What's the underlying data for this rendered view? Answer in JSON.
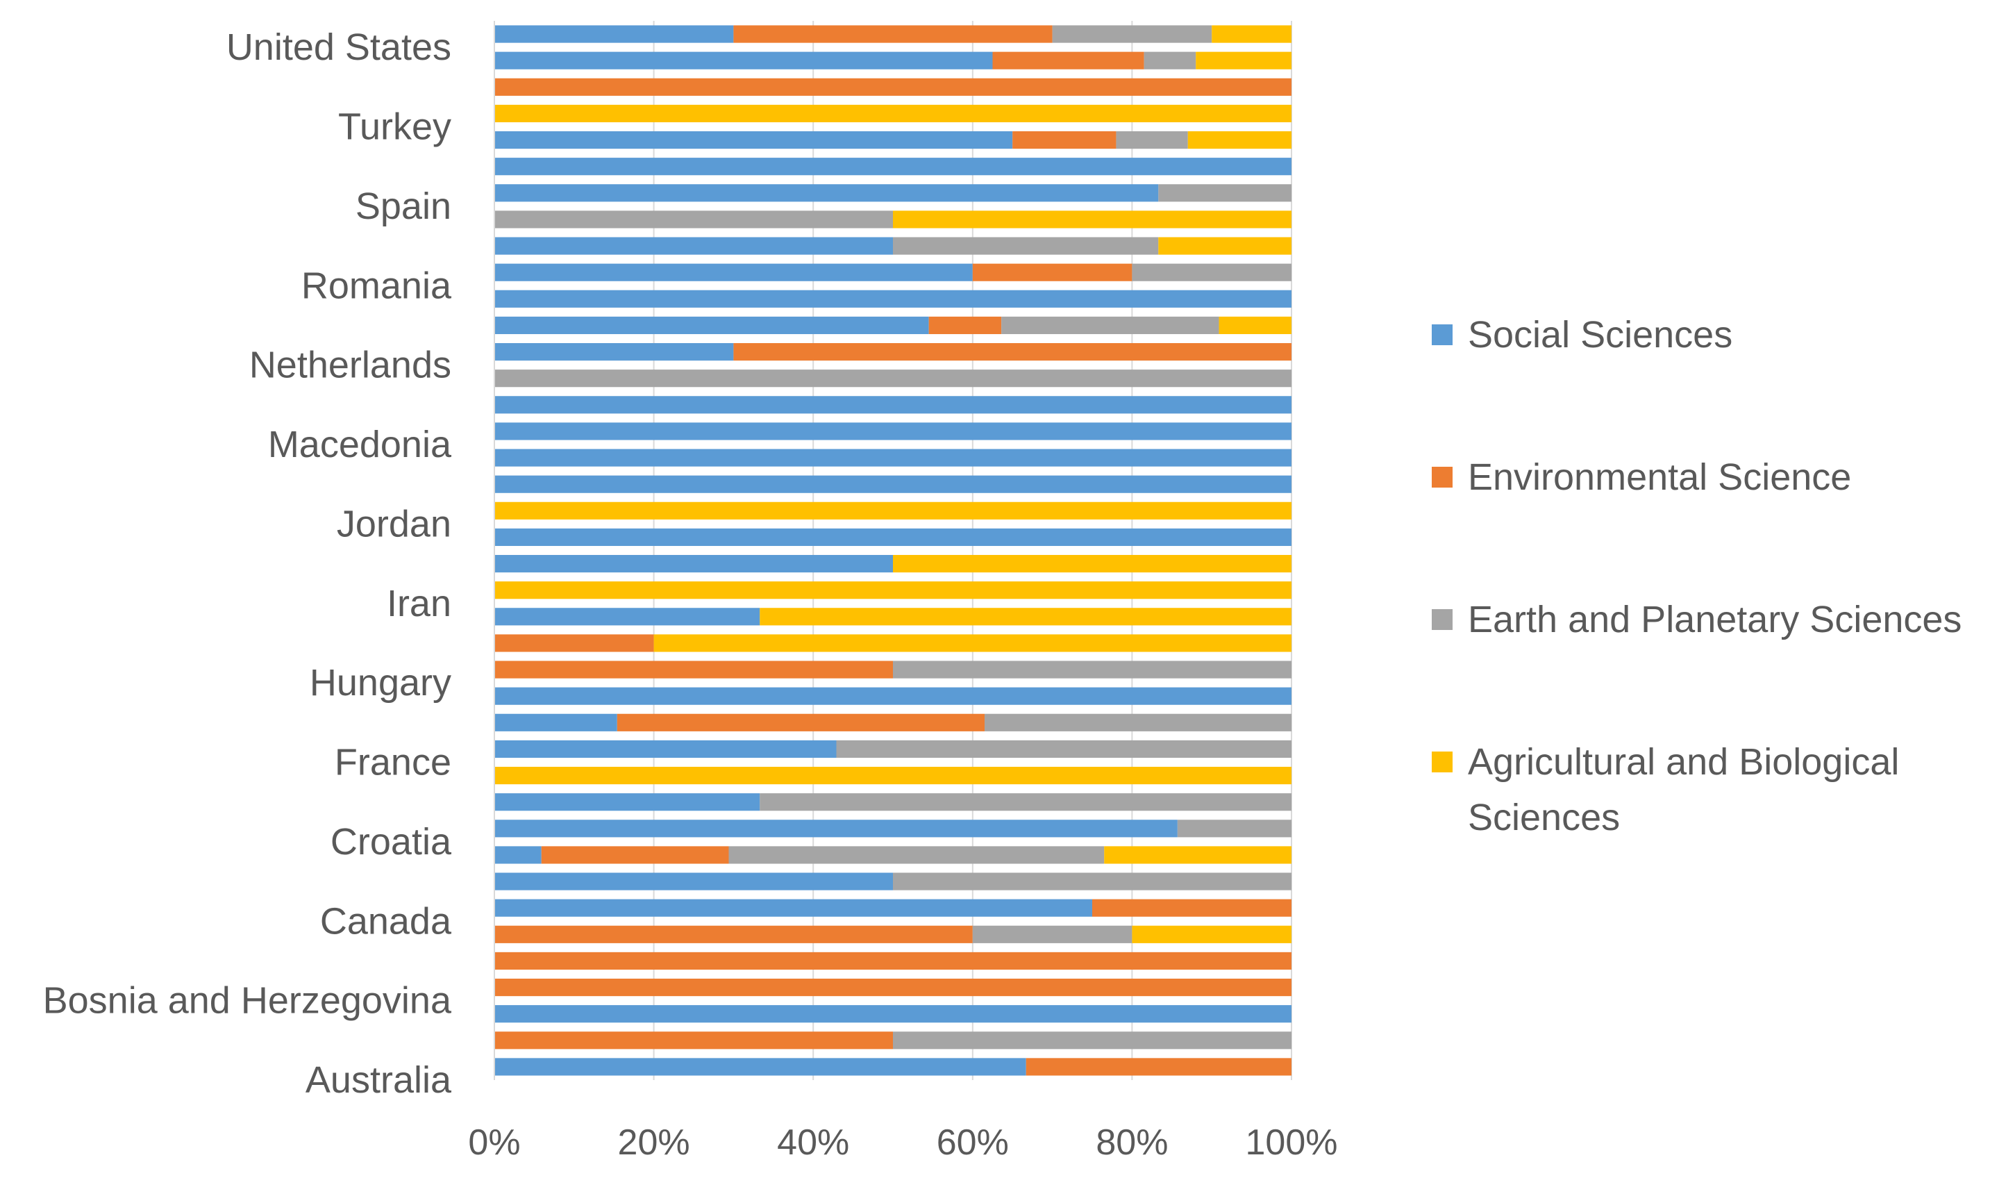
{
  "chart_data": {
    "type": "bar",
    "orientation": "horizontal",
    "stacked": "percent",
    "title": "",
    "xlabel": "",
    "ylabel": "",
    "xlim": [
      0,
      100
    ],
    "x_ticks": [
      "0%",
      "20%",
      "40%",
      "60%",
      "80%",
      "100%"
    ],
    "category_labels": [
      "United States",
      "Turkey",
      "Spain",
      "Romania",
      "Netherlands",
      "Macedonia",
      "Jordan",
      "Iran",
      "Hungary",
      "France",
      "Croatia",
      "Canada",
      "Bosnia and Herzegovina",
      "Australia"
    ],
    "legend_position": "right",
    "series": [
      {
        "name": "Social Sciences",
        "color": "#5B9BD5"
      },
      {
        "name": "Environmental Science",
        "color": "#ED7D31"
      },
      {
        "name": "Earth and Planetary Sciences",
        "color": "#A5A5A5"
      },
      {
        "name": "Agricultural and Biological Sciences",
        "color": "#FFC000"
      }
    ],
    "legend_lines": [
      [
        "Social Sciences"
      ],
      [
        "Environmental Science"
      ],
      [
        "Earth and Planetary Sciences"
      ],
      [
        "Agricultural and Biological",
        "Sciences"
      ]
    ],
    "bars_top_to_bottom": [
      [
        30,
        40,
        20,
        10
      ],
      [
        62.5,
        19,
        6.5,
        12
      ],
      [
        0,
        100,
        0,
        0
      ],
      [
        0,
        0,
        0,
        100
      ],
      [
        65,
        13,
        9,
        13
      ],
      [
        100,
        0,
        0,
        0
      ],
      [
        83.3,
        0,
        16.7,
        0
      ],
      [
        0,
        0,
        50,
        50
      ],
      [
        50,
        0,
        33.3,
        16.7
      ],
      [
        60,
        20,
        20,
        0
      ],
      [
        100,
        0,
        0,
        0
      ],
      [
        54.5,
        9.1,
        27.3,
        9.1
      ],
      [
        30,
        70,
        0,
        0
      ],
      [
        0,
        0,
        100,
        0
      ],
      [
        100,
        0,
        0,
        0
      ],
      [
        100,
        0,
        0,
        0
      ],
      [
        100,
        0,
        0,
        0
      ],
      [
        100,
        0,
        0,
        0
      ],
      [
        0,
        0,
        0,
        100
      ],
      [
        100,
        0,
        0,
        0
      ],
      [
        50,
        0,
        0,
        50
      ],
      [
        0,
        0,
        0,
        100
      ],
      [
        33.3,
        0,
        0,
        66.7
      ],
      [
        0,
        20,
        0,
        80
      ],
      [
        0,
        50,
        50,
        0
      ],
      [
        100,
        0,
        0,
        0
      ],
      [
        15.4,
        46.1,
        38.5,
        0
      ],
      [
        42.9,
        0,
        57.1,
        0
      ],
      [
        0,
        0,
        0,
        100
      ],
      [
        33.3,
        0,
        66.7,
        0
      ],
      [
        85.7,
        0,
        14.3,
        0
      ],
      [
        5.9,
        23.5,
        47.1,
        23.5
      ],
      [
        50,
        0,
        50,
        0
      ],
      [
        75,
        25,
        0,
        0
      ],
      [
        0,
        60,
        20,
        20
      ],
      [
        0,
        100,
        0,
        0
      ],
      [
        0,
        100,
        0,
        0
      ],
      [
        100,
        0,
        0,
        0
      ],
      [
        0,
        50,
        50,
        0
      ],
      [
        66.7,
        33.3,
        0,
        0
      ]
    ]
  }
}
